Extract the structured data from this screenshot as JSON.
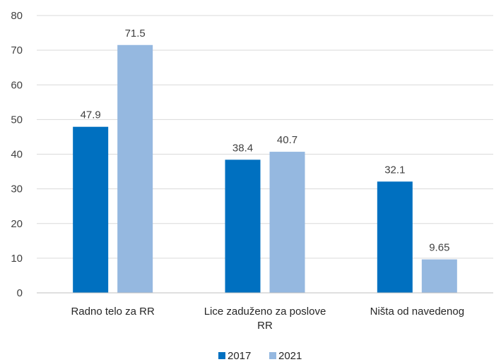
{
  "chart_data": {
    "type": "bar",
    "title": "",
    "xlabel": "",
    "ylabel": "",
    "ylim": [
      0,
      80
    ],
    "yticks": [
      0,
      10,
      20,
      30,
      40,
      50,
      60,
      70,
      80
    ],
    "grid": true,
    "legend_position": "bottom",
    "categories": [
      [
        "Radno telo za RR"
      ],
      [
        "Lice zaduženo za poslove",
        "RR"
      ],
      [
        "Ništa od navedenog"
      ]
    ],
    "series": [
      {
        "name": "2017",
        "color": "#0070c0",
        "values": [
          47.9,
          38.4,
          32.1
        ],
        "labels": [
          "47.9",
          "38.4",
          "32.1"
        ]
      },
      {
        "name": "2021",
        "color": "#95b8e0",
        "values": [
          71.5,
          40.7,
          9.65
        ],
        "labels": [
          "71.5",
          "40.7",
          "9.65"
        ]
      }
    ]
  }
}
